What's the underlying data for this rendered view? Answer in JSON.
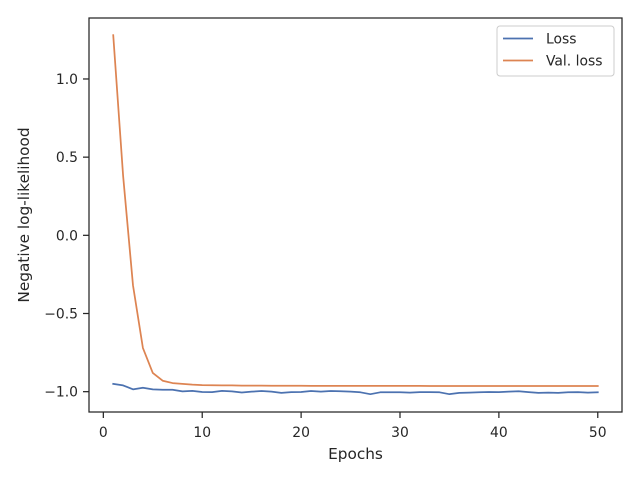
{
  "chart_data": {
    "type": "line",
    "title": "",
    "xlabel": "Epochs",
    "ylabel": "Negative log-likelihood",
    "xlim": [
      -1.45,
      52.45
    ],
    "ylim": [
      -1.13,
      1.39
    ],
    "xticks": [
      0,
      10,
      20,
      30,
      40,
      50
    ],
    "xtick_labels": [
      "0",
      "10",
      "20",
      "30",
      "40",
      "50"
    ],
    "yticks": [
      -1.0,
      -0.5,
      0.0,
      0.5,
      1.0
    ],
    "ytick_labels": [
      "−1.0",
      "−0.5",
      "0.0",
      "0.5",
      "1.0"
    ],
    "grid": false,
    "legend_position": "upper right",
    "x": [
      1,
      2,
      3,
      4,
      5,
      6,
      7,
      8,
      9,
      10,
      11,
      12,
      13,
      14,
      15,
      16,
      17,
      18,
      19,
      20,
      21,
      22,
      23,
      24,
      25,
      26,
      27,
      28,
      29,
      30,
      31,
      32,
      33,
      34,
      35,
      36,
      37,
      38,
      39,
      40,
      41,
      42,
      43,
      44,
      45,
      46,
      47,
      48,
      49,
      50
    ],
    "series": [
      {
        "name": "Loss",
        "color": "#4c72b0",
        "values": [
          -0.95,
          -0.96,
          -0.985,
          -0.975,
          -0.985,
          -0.988,
          -0.988,
          -0.998,
          -0.995,
          -1.002,
          -1.003,
          -0.995,
          -0.998,
          -1.005,
          -1.0,
          -0.996,
          -1.0,
          -1.008,
          -1.003,
          -1.002,
          -0.996,
          -1.0,
          -0.996,
          -0.997,
          -1.0,
          -1.004,
          -1.016,
          -1.004,
          -1.004,
          -1.004,
          -1.006,
          -1.003,
          -1.003,
          -1.004,
          -1.016,
          -1.008,
          -1.006,
          -1.004,
          -1.002,
          -1.003,
          -1.0,
          -0.997,
          -1.003,
          -1.008,
          -1.006,
          -1.008,
          -1.004,
          -1.003,
          -1.006,
          -1.004
        ]
      },
      {
        "name": "Val. loss",
        "color": "#dd8452",
        "values": [
          1.28,
          0.38,
          -0.32,
          -0.72,
          -0.88,
          -0.93,
          -0.945,
          -0.95,
          -0.955,
          -0.958,
          -0.959,
          -0.96,
          -0.96,
          -0.961,
          -0.961,
          -0.961,
          -0.962,
          -0.962,
          -0.962,
          -0.962,
          -0.963,
          -0.963,
          -0.963,
          -0.963,
          -0.963,
          -0.963,
          -0.963,
          -0.963,
          -0.963,
          -0.963,
          -0.963,
          -0.963,
          -0.964,
          -0.964,
          -0.964,
          -0.964,
          -0.964,
          -0.964,
          -0.964,
          -0.964,
          -0.964,
          -0.964,
          -0.964,
          -0.964,
          -0.964,
          -0.964,
          -0.964,
          -0.964,
          -0.964,
          -0.964
        ]
      }
    ]
  }
}
